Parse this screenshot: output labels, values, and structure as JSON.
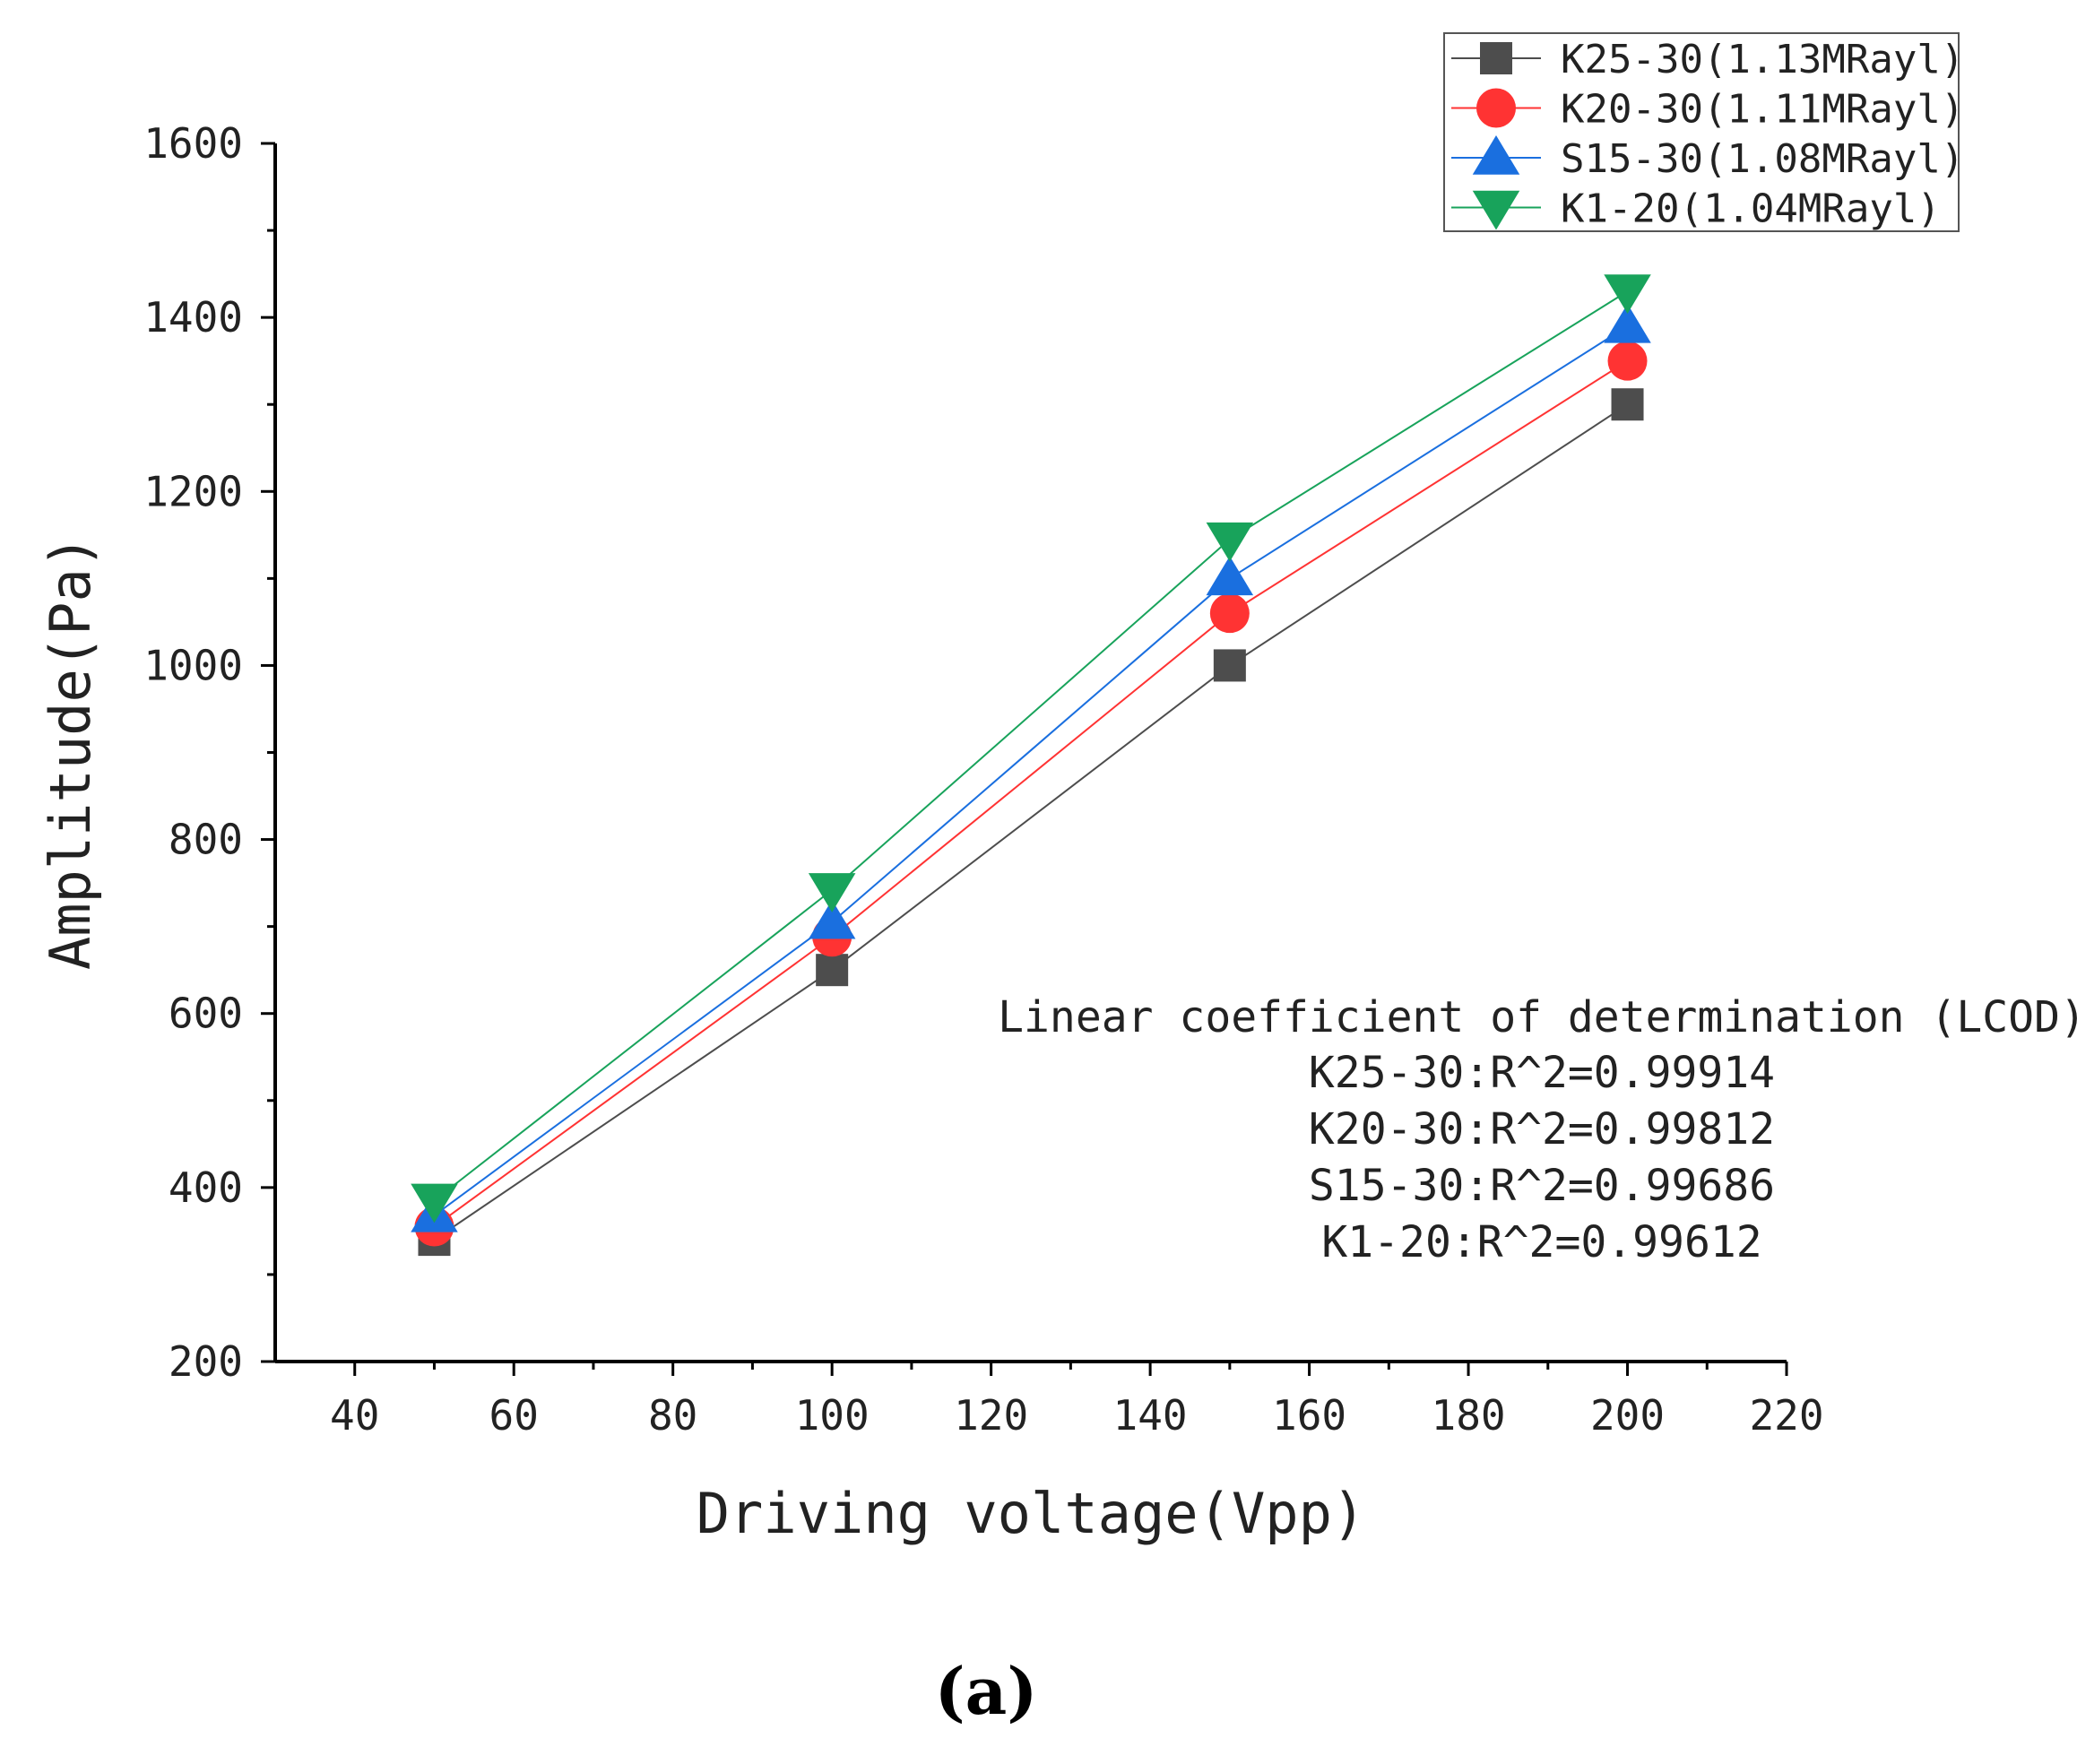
{
  "chart_data": {
    "type": "line",
    "xlabel": "Driving voltage(Vpp)",
    "ylabel": "Amplitude(Pa)",
    "xlim": [
      30,
      220
    ],
    "ylim": [
      200,
      1600
    ],
    "xticks": [
      40,
      60,
      80,
      100,
      120,
      140,
      160,
      180,
      200,
      220
    ],
    "yticks": [
      200,
      400,
      600,
      800,
      1000,
      1200,
      1400,
      1600
    ],
    "grid": false,
    "legend_position": "top-right",
    "x": [
      50,
      100,
      150,
      200
    ],
    "series": [
      {
        "name": "K25-30(1.13MRayl)",
        "values": [
          340,
          650,
          1000,
          1300
        ],
        "color": "#4d4d4d",
        "marker": "square"
      },
      {
        "name": "K20-30(1.11MRayl)",
        "values": [
          355,
          688,
          1060,
          1350
        ],
        "color": "#ff3333",
        "marker": "circle"
      },
      {
        "name": "S15-30(1.08MRayl)",
        "values": [
          368,
          705,
          1100,
          1390
        ],
        "color": "#1a6fdf",
        "marker": "triangle-up"
      },
      {
        "name": "K1-20(1.04MRayl)",
        "values": [
          385,
          742,
          1145,
          1430
        ],
        "color": "#18a35b",
        "marker": "triangle-down"
      }
    ],
    "annotation": {
      "title": "Linear coefficient of determination (LCOD)",
      "lines": [
        "K25-30:R^2=0.99914",
        "K20-30:R^2=0.99812",
        "S15-30:R^2=0.99686",
        "K1-20:R^2=0.99612"
      ]
    }
  },
  "panel_label": "(a)"
}
